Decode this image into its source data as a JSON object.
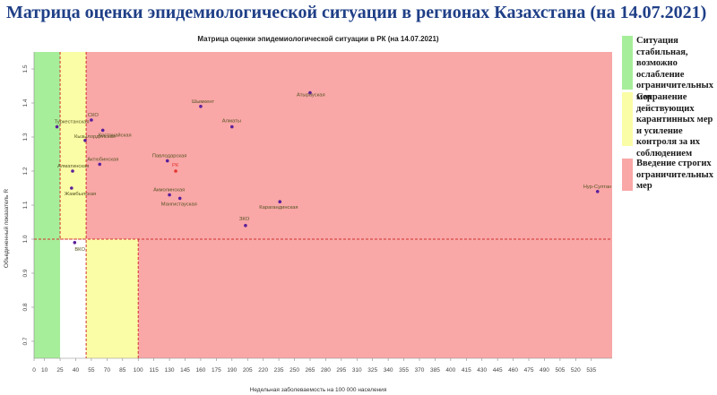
{
  "page_title": "Матрица оценки эпидемиологической ситуации в регионах Казахстана (на 14.07.2021)",
  "colors": {
    "title": "#1f3f87",
    "green_zone": "#a7ee9a",
    "yellow_zone": "#fbfca6",
    "red_zone": "#f9a7a7",
    "threshold_line": "#d0312d",
    "point": "#5a1f9a",
    "rk_point": "#e3342f"
  },
  "legend": [
    {
      "color": "#a7ee9a",
      "text": "Ситуация стабильная, возможно ослабление ограничительных мер"
    },
    {
      "color": "#fbfca6",
      "text": "Сохранение действующих карантинных мер и усиление контроля за их соблюдением"
    },
    {
      "color": "#f9a7a7",
      "text": "Введение строгих ограничительных мер"
    }
  ],
  "chart_data": {
    "type": "scatter",
    "title": "Матрица оценки эпидемиологической ситуации в РК (на 14.07.2021)",
    "xlabel": "Недельная заболеваемость на 100 000 населения",
    "ylabel": "Объединенный показатель R",
    "xlim": [
      0,
      555
    ],
    "ylim": [
      0.65,
      1.55
    ],
    "xticks": [
      0,
      10,
      25,
      40,
      55,
      70,
      85,
      100,
      115,
      130,
      145,
      160,
      175,
      190,
      205,
      220,
      235,
      250,
      265,
      280,
      295,
      310,
      325,
      340,
      355,
      370,
      385,
      400,
      415,
      430,
      445,
      460,
      475,
      490,
      505,
      520,
      535
    ],
    "yticks": [
      0.7,
      0.8,
      0.9,
      1.0,
      1.1,
      1.2,
      1.3,
      1.4,
      1.5
    ],
    "threshold_r": 1.0,
    "zones": [
      {
        "color": "green",
        "x": [
          0,
          25
        ],
        "y": [
          0.65,
          1.55
        ]
      },
      {
        "color": "yellow",
        "x": [
          25,
          50
        ],
        "y": [
          1.0,
          1.55
        ]
      },
      {
        "color": "yellow",
        "x": [
          50,
          100
        ],
        "y": [
          0.65,
          1.0
        ]
      },
      {
        "color": "red",
        "x": [
          50,
          555
        ],
        "y": [
          1.0,
          1.55
        ]
      },
      {
        "color": "red",
        "x": [
          100,
          555
        ],
        "y": [
          0.65,
          1.0
        ]
      }
    ],
    "points": [
      {
        "label": "Туркестанская",
        "x": 22,
        "y": 1.33
      },
      {
        "label": "СКО",
        "x": 55,
        "y": 1.35
      },
      {
        "label": "Костанайская",
        "x": 66,
        "y": 1.32
      },
      {
        "label": "Кызылординская",
        "x": 49,
        "y": 1.29
      },
      {
        "label": "Алматинская",
        "x": 37,
        "y": 1.2
      },
      {
        "label": "Актюбинская",
        "x": 63,
        "y": 1.22
      },
      {
        "label": "Жамбылская",
        "x": 36,
        "y": 1.15
      },
      {
        "label": "ВКО",
        "x": 39,
        "y": 0.99
      },
      {
        "label": "Шымкент",
        "x": 160,
        "y": 1.39
      },
      {
        "label": "Атырауская",
        "x": 265,
        "y": 1.43
      },
      {
        "label": "Алматы",
        "x": 190,
        "y": 1.33
      },
      {
        "label": "Павлодарская",
        "x": 128,
        "y": 1.23
      },
      {
        "label": "РК",
        "x": 136,
        "y": 1.2,
        "highlight": true
      },
      {
        "label": "Акмолинская",
        "x": 130,
        "y": 1.13
      },
      {
        "label": "Мангистауская",
        "x": 140,
        "y": 1.12
      },
      {
        "label": "Карагандинская",
        "x": 236,
        "y": 1.11
      },
      {
        "label": "ЗКО",
        "x": 203,
        "y": 1.04
      },
      {
        "label": "Нур-Султан",
        "x": 541,
        "y": 1.14
      }
    ]
  }
}
